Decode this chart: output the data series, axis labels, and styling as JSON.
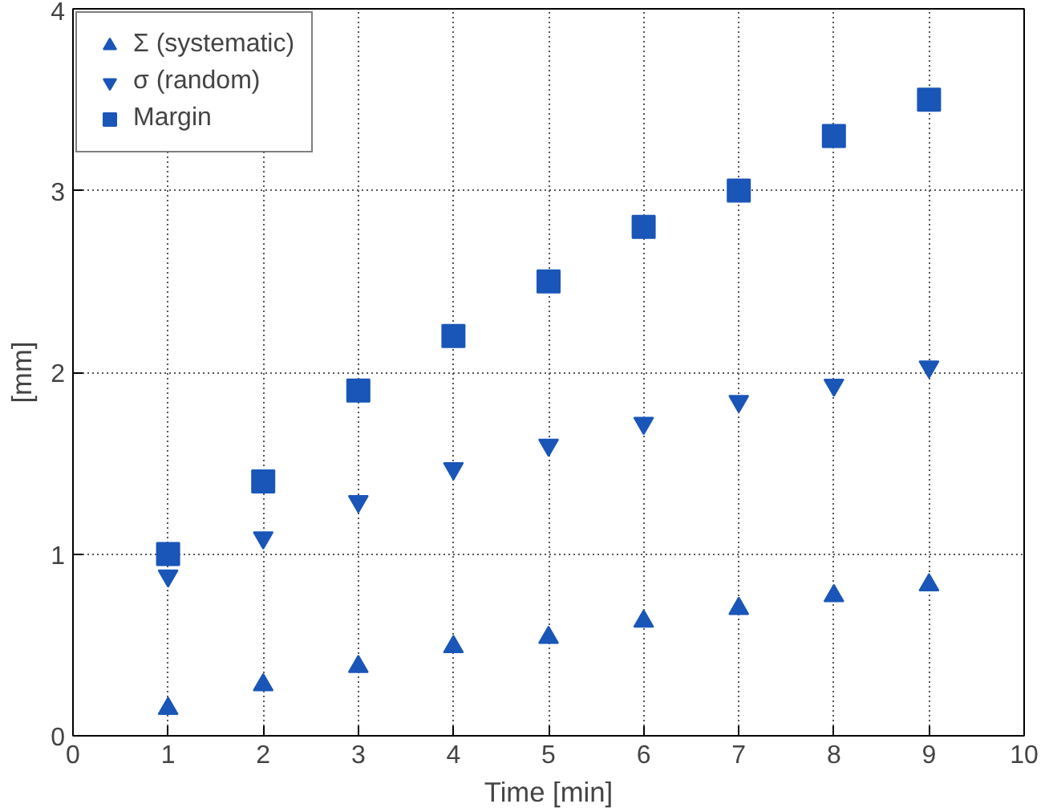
{
  "chart_data": {
    "type": "scatter",
    "xlabel": "Time [min]",
    "ylabel": "[mm]",
    "x": [
      1,
      2,
      3,
      4,
      5,
      6,
      7,
      8,
      9
    ],
    "series": [
      {
        "name": "Σ (systematic)",
        "color": "#1a56b8",
        "marker": "triangle",
        "values": [
          0.15,
          0.28,
          0.38,
          0.49,
          0.54,
          0.63,
          0.7,
          0.77,
          0.83
        ]
      },
      {
        "name": "σ (random)",
        "color": "#1a56b8",
        "marker": "triangle_down",
        "values": [
          0.88,
          1.09,
          1.29,
          1.47,
          1.6,
          1.72,
          1.84,
          1.93,
          2.03
        ]
      },
      {
        "name": "Margin",
        "color": "#1a56b8",
        "marker": "square",
        "values": [
          1.0,
          1.4,
          1.9,
          2.2,
          2.5,
          2.8,
          3.0,
          3.3,
          3.5
        ]
      }
    ],
    "xlim": [
      0,
      10
    ],
    "xticks": [
      0,
      1,
      2,
      3,
      4,
      5,
      6,
      7,
      8,
      9,
      10
    ],
    "ylim": [
      0,
      4
    ],
    "yticks": [
      0,
      1,
      2,
      3,
      4
    ],
    "grid": true,
    "legend": "top left"
  }
}
